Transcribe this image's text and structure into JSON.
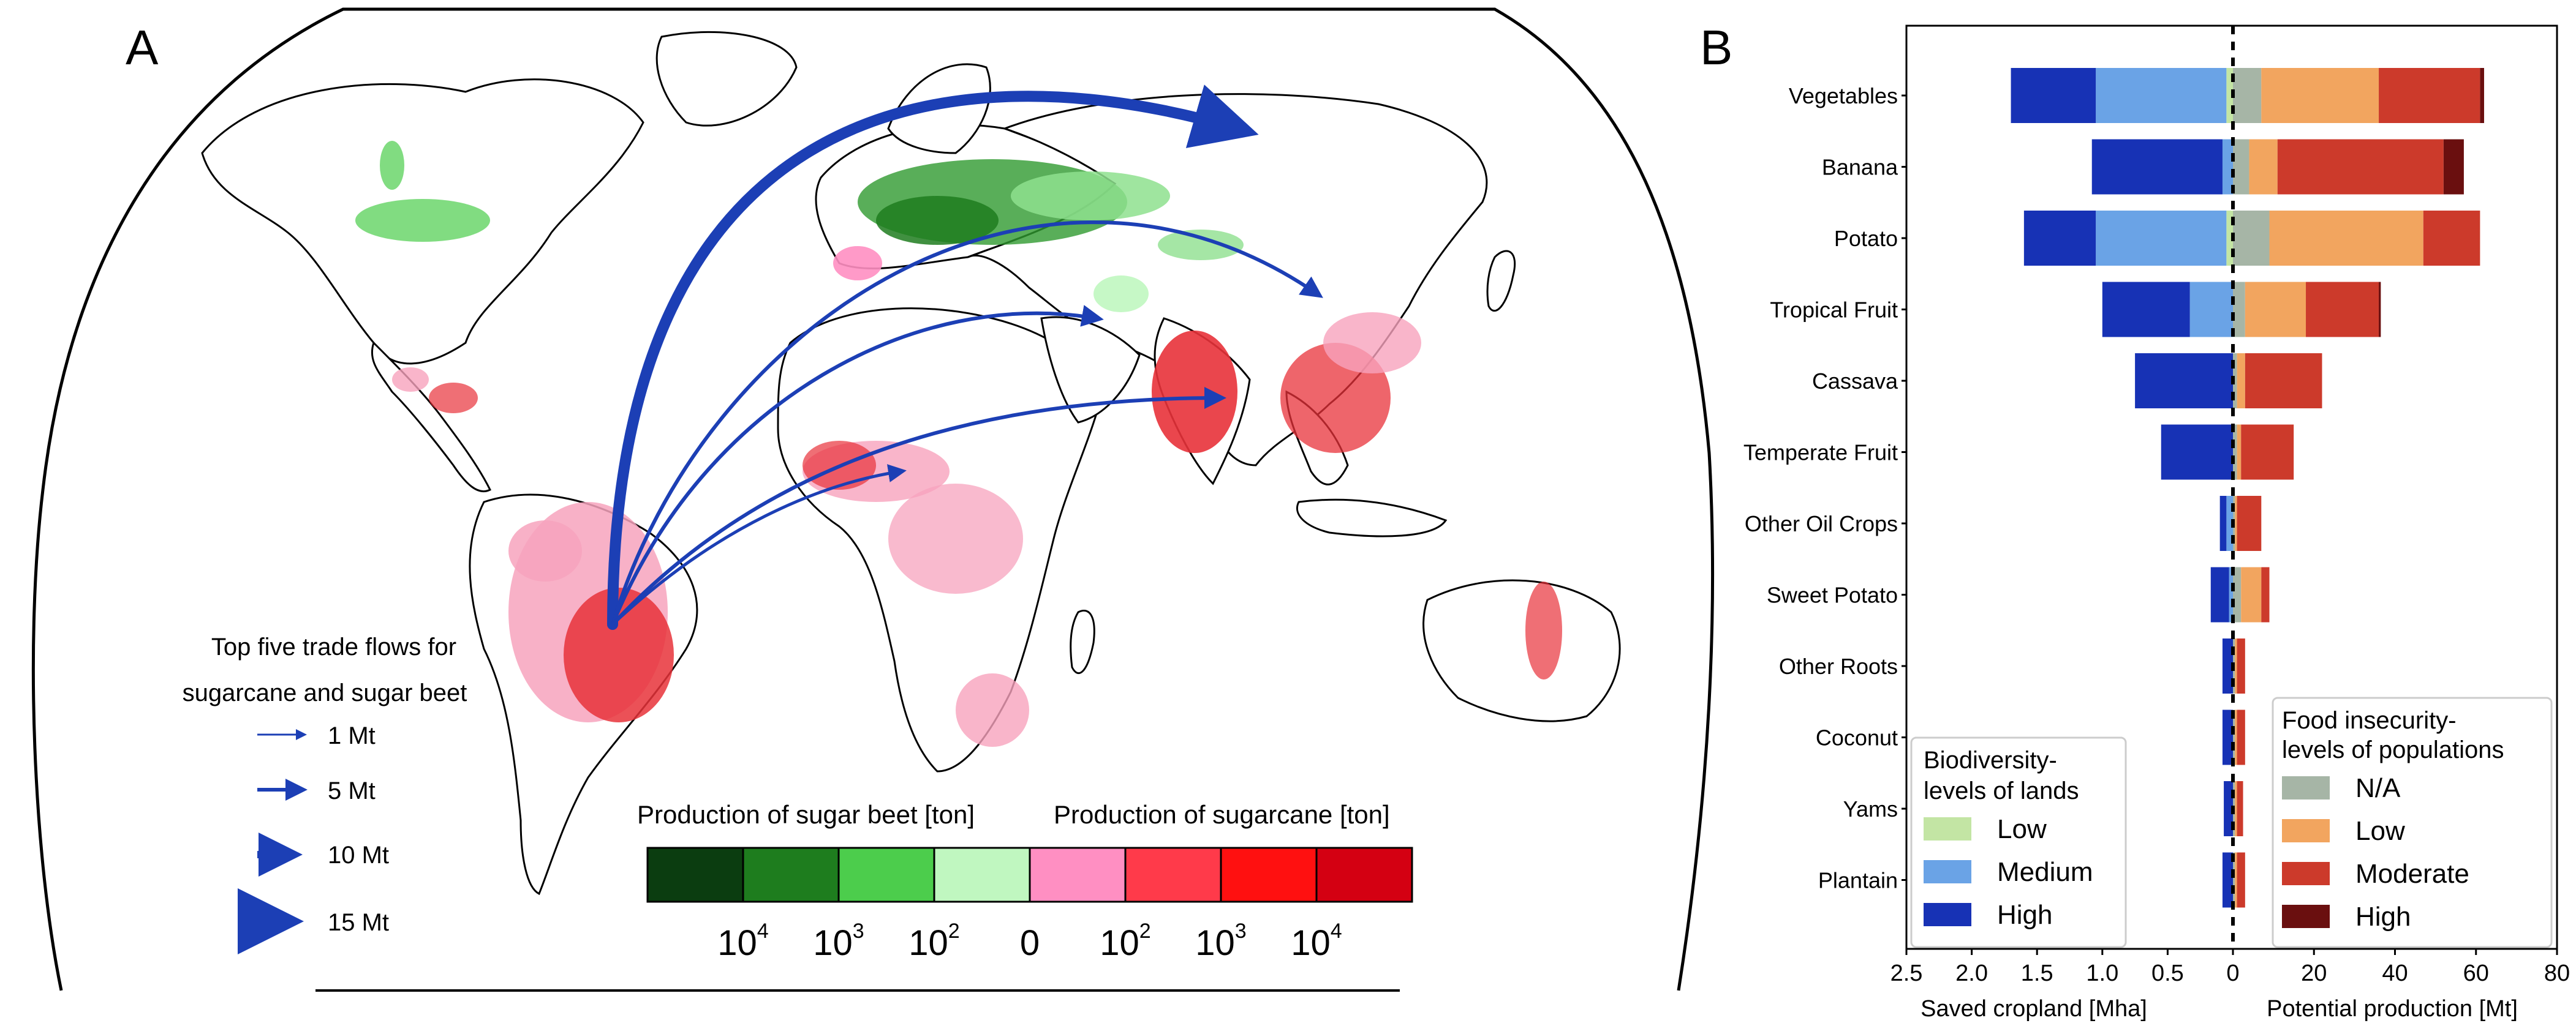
{
  "panel_a": {
    "label": "A",
    "trade_legend": {
      "title_lines": [
        "Top five trade flows for",
        "sugarcane and sugar beet"
      ],
      "items": [
        "1 Mt",
        "5 Mt",
        "10 Mt",
        "15 Mt"
      ]
    },
    "colorbar": {
      "beet_title": "Production of sugar beet [ton]",
      "cane_title": "Production of sugarcane [ton]",
      "tick_labels": [
        {
          "base": "10",
          "exp": "4"
        },
        {
          "base": "10",
          "exp": "3"
        },
        {
          "base": "10",
          "exp": "2"
        },
        {
          "base": "0",
          "exp": ""
        },
        {
          "base": "10",
          "exp": "2"
        },
        {
          "base": "10",
          "exp": "3"
        },
        {
          "base": "10",
          "exp": "4"
        }
      ],
      "colors": [
        "#0b3d10",
        "#1e7d1e",
        "#4ccd4c",
        "#c0f7c0",
        "#ff8fc2",
        "#ff3a4a",
        "#ff1010",
        "#d40012"
      ]
    },
    "colors": {
      "arrow": "#1c3fb5",
      "cane": "#e8323a",
      "cane_light": "#f7a3bd",
      "beet": "#2f9a2f",
      "beet_light": "#8ee08e"
    }
  },
  "panel_b": {
    "label": "B",
    "chart_data": {
      "type": "bar",
      "orientation": "horizontal-diverging",
      "categories": [
        "Vegetables",
        "Banana",
        "Potato",
        "Tropical Fruit",
        "Cassava",
        "Temperate Fruit",
        "Other Oil Crops",
        "Sweet Potato",
        "Other Roots",
        "Coconut",
        "Yams",
        "Plantain"
      ],
      "left": {
        "xlabel": "Saved cropland [Mha]",
        "xlim": [
          2.5,
          0
        ],
        "ticks": [
          "2.5",
          "2.0",
          "1.5",
          "1.0",
          "0.5",
          "0"
        ],
        "legend_title_lines": [
          "Biodiversity-",
          "levels of lands"
        ],
        "series": [
          {
            "name": "Low",
            "color": "#c3e5a4",
            "values": [
              0.05,
              0.0,
              0.05,
              0.0,
              0.0,
              0.0,
              0.0,
              0.0,
              0.0,
              0.0,
              0.0,
              0.0
            ]
          },
          {
            "name": "Medium",
            "color": "#6aa3e6",
            "values": [
              1.0,
              0.08,
              1.0,
              0.33,
              0.0,
              0.0,
              0.05,
              0.03,
              0.0,
              0.0,
              0.0,
              0.0
            ]
          },
          {
            "name": "High",
            "color": "#1732b5",
            "values": [
              0.65,
              1.0,
              0.55,
              0.67,
              0.75,
              0.55,
              0.05,
              0.14,
              0.08,
              0.08,
              0.07,
              0.08
            ]
          }
        ]
      },
      "right": {
        "xlabel": "Potential production [Mt]",
        "xlim": [
          0,
          80
        ],
        "ticks": [
          "0",
          "20",
          "40",
          "60",
          "80"
        ],
        "legend_title_lines": [
          "Food insecurity-",
          "levels of populations"
        ],
        "series": [
          {
            "name": "N/A",
            "color": "#a6b5a6",
            "values": [
              7,
              4,
              9,
              3,
              1,
              1,
              0.5,
              2,
              0.5,
              0.5,
              0.5,
              0.5
            ]
          },
          {
            "name": "Low",
            "color": "#f2a55f",
            "values": [
              29,
              7,
              38,
              15,
              2,
              1,
              0.5,
              5,
              0.5,
              0.5,
              0.5,
              0.5
            ]
          },
          {
            "name": "Moderate",
            "color": "#cc3a2b",
            "values": [
              25,
              41,
              14,
              18,
              19,
              13,
              6,
              2,
              2,
              2,
              1.5,
              2
            ]
          },
          {
            "name": "High",
            "color": "#6a0f0f",
            "values": [
              1,
              5,
              0,
              0.5,
              0,
              0,
              0,
              0,
              0,
              0,
              0,
              0
            ]
          }
        ]
      },
      "legend_left_labels": [
        "Low",
        "Medium",
        "High"
      ],
      "legend_right_labels": [
        "N/A",
        "Low",
        "Moderate",
        "High"
      ]
    }
  }
}
